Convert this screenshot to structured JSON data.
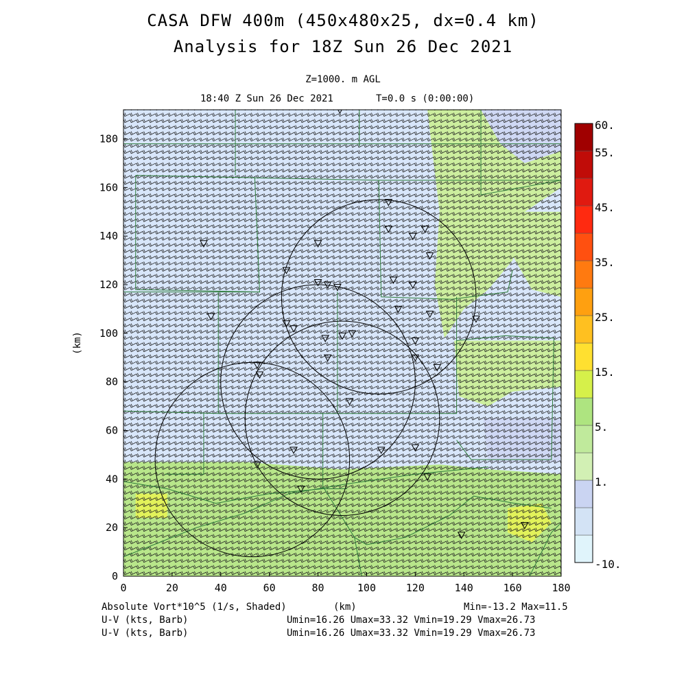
{
  "title_line1": "CASA DFW 400m (450x480x25, dx=0.4 km)",
  "title_line2": "Analysis for 18Z Sun 26 Dec 2021",
  "level": "Z=1000. m AGL",
  "valid_time": "18:40 Z Sun 26 Dec 2021",
  "time_info": "T=0.0 s (0:00:00)",
  "x_axis": {
    "label": "(km)",
    "range": [
      0,
      180
    ],
    "ticks": [
      "0",
      "20",
      "40",
      "60",
      "80",
      "100",
      "120",
      "140",
      "160",
      "180"
    ]
  },
  "y_axis": {
    "label": "(km)",
    "range": [
      0,
      192
    ],
    "ticks": [
      "0",
      "20",
      "40",
      "60",
      "80",
      "100",
      "120",
      "140",
      "160",
      "180"
    ]
  },
  "colorbar": {
    "labels": [
      "60.",
      "55.",
      "45.",
      "35.",
      "25.",
      "15.",
      "5.",
      "1.",
      "-10."
    ],
    "colors": [
      "#e0f4fb",
      "#d3e3f5",
      "#cad4f2",
      "#d2f0b4",
      "#c0ea9c",
      "#aee480",
      "#d6f04a",
      "#ffe030",
      "#ffc020",
      "#ffa010",
      "#ff7a10",
      "#ff5010",
      "#ff2a10",
      "#e01a10",
      "#c00c08",
      "#a00000"
    ]
  },
  "footer": {
    "field1": "Absolute Vort*10^5 (1/s, Shaded)",
    "x_unit": "(km)",
    "minmax": "Min=-13.2 Max=11.5",
    "field2": "U-V (kts, Barb)",
    "stats2": "Umin=16.26 Umax=33.32 Vmin=19.29 Vmax=26.73",
    "field3": "U-V (kts, Barb)",
    "stats3": "Umin=16.26 Umax=33.32 Vmin=19.29 Vmax=26.73"
  },
  "map_features": {
    "radar_range_rings": 4,
    "county_boundaries": "green",
    "station_marker": "down-triangle-icon"
  },
  "shading_colors": {
    "pale_blue": "#d8e6fa",
    "light_blue": "#cfd8f4",
    "light_green": "#ccee9e",
    "green": "#b8e68a",
    "yellow_green": "#e2f25a"
  }
}
